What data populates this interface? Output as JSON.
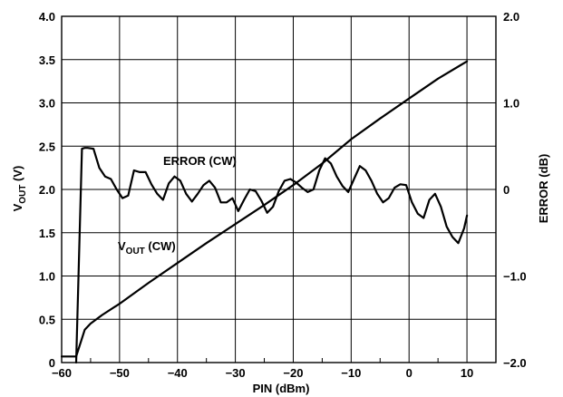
{
  "chart_data": {
    "type": "line",
    "xlabel": "PIN (dBm)",
    "ylabel_left": "V",
    "ylabel_left_sub": "OUT",
    "ylabel_left_unit": " (V)",
    "ylabel_right": "ERROR (dB)",
    "xlim": [
      -60,
      15
    ],
    "ylim_left": [
      0,
      4.0
    ],
    "ylim_right": [
      -2.0,
      2.0
    ],
    "grid": true,
    "x_ticks": [
      {
        "value": -60,
        "label": "−60"
      },
      {
        "value": -50,
        "label": "−50"
      },
      {
        "value": -40,
        "label": "−40"
      },
      {
        "value": -30,
        "label": "−30"
      },
      {
        "value": -20,
        "label": "−20"
      },
      {
        "value": -10,
        "label": "−10"
      },
      {
        "value": 0,
        "label": "0"
      },
      {
        "value": 10,
        "label": "10"
      }
    ],
    "y_left_ticks": [
      {
        "value": 0,
        "label": "0"
      },
      {
        "value": 0.5,
        "label": "0.5"
      },
      {
        "value": 1.0,
        "label": "1.0"
      },
      {
        "value": 1.5,
        "label": "1.5"
      },
      {
        "value": 2.0,
        "label": "2.0"
      },
      {
        "value": 2.5,
        "label": "2.5"
      },
      {
        "value": 3.0,
        "label": "3.0"
      },
      {
        "value": 3.5,
        "label": "3.5"
      },
      {
        "value": 4.0,
        "label": "4.0"
      }
    ],
    "y_right_ticks": [
      {
        "value": 2.0,
        "label": "2.0"
      },
      {
        "value": 1.0,
        "label": "1.0"
      },
      {
        "value": 0,
        "label": "0"
      },
      {
        "value": -1.0,
        "label": "−1.0"
      },
      {
        "value": -2.0,
        "label": "−2.0"
      }
    ],
    "annotations": {
      "error_label": "ERROR (CW)",
      "vout_label_main": "V",
      "vout_label_sub": "OUT",
      "vout_label_rest": " (CW)"
    },
    "series": [
      {
        "axis": "left",
        "x": [
          -60,
          -57.5,
          -56,
          -55,
          -53,
          -50,
          -45,
          -40,
          -35,
          -30,
          -25,
          -20,
          -15,
          -10,
          -5,
          0,
          5,
          10
        ],
        "y": [
          0.07,
          0.07,
          0.38,
          0.45,
          0.55,
          0.68,
          0.92,
          1.15,
          1.38,
          1.6,
          1.82,
          2.05,
          2.3,
          2.58,
          2.82,
          3.05,
          3.28,
          3.48
        ]
      },
      {
        "axis": "right",
        "x": [
          -57.5,
          -56.5,
          -56,
          -55.5,
          -54.5,
          -53.5,
          -52.5,
          -51.5,
          -50.5,
          -49.5,
          -48.5,
          -47.5,
          -46.5,
          -45.5,
          -44.5,
          -43.5,
          -42.5,
          -41.5,
          -40.5,
          -39.5,
          -38.5,
          -37.5,
          -36.5,
          -35.5,
          -34.5,
          -33.5,
          -32.5,
          -31.5,
          -30.5,
          -29.5,
          -28.5,
          -27.5,
          -26.5,
          -25.5,
          -24.5,
          -23.5,
          -22.5,
          -21.5,
          -20.5,
          -19.5,
          -18.5,
          -17.5,
          -16.5,
          -15.5,
          -14.5,
          -13.5,
          -12.5,
          -11.5,
          -10.5,
          -9.5,
          -8.5,
          -7.5,
          -6.5,
          -5.5,
          -4.5,
          -3.5,
          -2.5,
          -1.5,
          -0.5,
          0.5,
          1.5,
          2.5,
          3.5,
          4.5,
          5.5,
          6.5,
          7.5,
          8.5,
          9.5,
          10
        ],
        "y": [
          -2.0,
          0.47,
          0.48,
          0.48,
          0.47,
          0.25,
          0.15,
          0.12,
          0.0,
          -0.1,
          -0.07,
          0.22,
          0.2,
          0.2,
          0.06,
          -0.05,
          -0.12,
          0.07,
          0.15,
          0.1,
          -0.05,
          -0.14,
          -0.05,
          0.05,
          0.1,
          0.02,
          -0.15,
          -0.15,
          -0.1,
          -0.25,
          -0.12,
          0.0,
          -0.02,
          -0.13,
          -0.27,
          -0.2,
          -0.02,
          0.1,
          0.12,
          0.08,
          0.02,
          -0.03,
          0.0,
          0.22,
          0.36,
          0.3,
          0.15,
          0.04,
          -0.03,
          0.12,
          0.27,
          0.22,
          0.1,
          -0.05,
          -0.15,
          -0.1,
          0.02,
          0.06,
          0.05,
          -0.15,
          -0.28,
          -0.33,
          -0.12,
          -0.05,
          -0.2,
          -0.43,
          -0.55,
          -0.62,
          -0.45,
          -0.3
        ]
      }
    ]
  }
}
